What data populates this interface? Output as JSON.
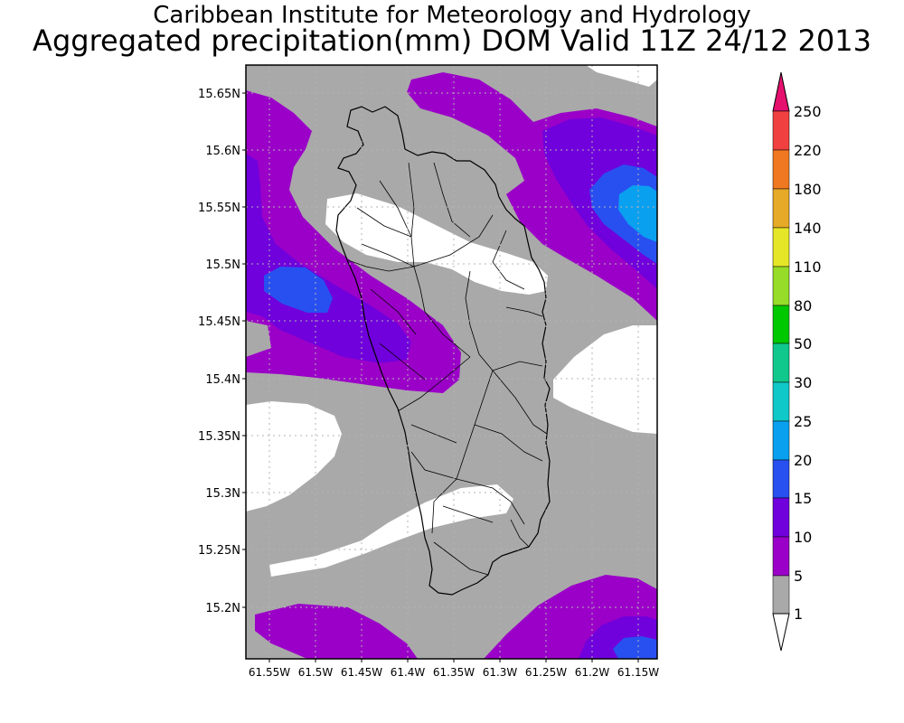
{
  "title": {
    "line1": "Caribbean Institute for Meteorology and Hydrology",
    "line2": "Aggregated precipitation(mm) DOM Valid 11Z 24/12 2013"
  },
  "map": {
    "lat_labels": [
      "15.65N",
      "15.6N",
      "15.55N",
      "15.5N",
      "15.45N",
      "15.4N",
      "15.35N",
      "15.3N",
      "15.25N",
      "15.2N"
    ],
    "lon_labels": [
      "61.55W",
      "61.5W",
      "61.45W",
      "61.4W",
      "61.35W",
      "61.3W",
      "61.25W",
      "61.2W",
      "61.15W"
    ]
  },
  "colorbar": {
    "levels": [
      "1",
      "5",
      "10",
      "15",
      "20",
      "25",
      "30",
      "50",
      "80",
      "110",
      "140",
      "180",
      "220",
      "250"
    ],
    "colors": {
      "below_1": "#ffffff",
      "1_5": "#a9a9a9",
      "5_10": "#9b00c8",
      "10_15": "#7000dc",
      "15_20": "#2850f0",
      "20_25": "#0aa0f0",
      "25_30": "#10c8c8",
      "30_50": "#10c88c",
      "50_80": "#00c800",
      "80_110": "#96dc28",
      "110_140": "#e6e628",
      "140_180": "#e6aa28",
      "180_220": "#f07820",
      "220_250": "#f04040",
      "above_250": "#e6106e"
    }
  }
}
